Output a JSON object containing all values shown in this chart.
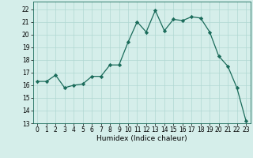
{
  "title": "",
  "xlabel": "Humidex (Indice chaleur)",
  "x": [
    0,
    1,
    2,
    3,
    4,
    5,
    6,
    7,
    8,
    9,
    10,
    11,
    12,
    13,
    14,
    15,
    16,
    17,
    18,
    19,
    20,
    21,
    22,
    23
  ],
  "y": [
    16.3,
    16.3,
    16.8,
    15.8,
    16.0,
    16.1,
    16.7,
    16.7,
    17.6,
    17.6,
    19.4,
    21.0,
    20.2,
    21.9,
    20.3,
    21.2,
    21.1,
    21.4,
    21.3,
    20.2,
    18.3,
    17.5,
    15.8,
    13.2
  ],
  "line_color": "#1a6b5a",
  "marker": "D",
  "marker_size": 2.2,
  "bg_color": "#d5eeea",
  "grid_color": "#b0d8d2",
  "xlim": [
    -0.5,
    23.5
  ],
  "ylim": [
    13,
    22.6
  ],
  "yticks": [
    13,
    14,
    15,
    16,
    17,
    18,
    19,
    20,
    21,
    22
  ],
  "xticks": [
    0,
    1,
    2,
    3,
    4,
    5,
    6,
    7,
    8,
    9,
    10,
    11,
    12,
    13,
    14,
    15,
    16,
    17,
    18,
    19,
    20,
    21,
    22,
    23
  ],
  "tick_fontsize": 5.5,
  "xlabel_fontsize": 6.5
}
